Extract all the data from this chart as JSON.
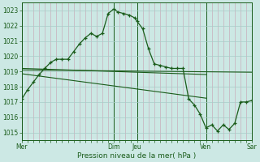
{
  "background_color": "#cce8e4",
  "plot_bg_color": "#cce8e4",
  "grid_color_major": "#a8ccc8",
  "grid_color_minor": "#c8a0b0",
  "line_color": "#1a5c1a",
  "title": "",
  "xlabel": "Pression niveau de la mer( hPa )",
  "ylim": [
    1014.5,
    1023.5
  ],
  "yticks": [
    1015,
    1016,
    1017,
    1018,
    1019,
    1020,
    1021,
    1022,
    1023
  ],
  "xlim": [
    0,
    240
  ],
  "day_positions": [
    0,
    96,
    120,
    192,
    240
  ],
  "day_labels": [
    "Mer",
    "Dim",
    "Jeu",
    "Ven",
    "Sar"
  ],
  "main_x": [
    0,
    6,
    12,
    18,
    24,
    30,
    36,
    42,
    48,
    54,
    60,
    66,
    72,
    78,
    84,
    90,
    96,
    100,
    106,
    112,
    118,
    120,
    126,
    132,
    138,
    144,
    150,
    156,
    162,
    168,
    174,
    180,
    186,
    192,
    198,
    204,
    210,
    216,
    222,
    228,
    234,
    240
  ],
  "main_y": [
    1017.2,
    1017.8,
    1018.3,
    1018.8,
    1019.2,
    1019.6,
    1019.8,
    1019.8,
    1019.8,
    1020.3,
    1020.8,
    1021.2,
    1021.5,
    1021.3,
    1021.5,
    1022.8,
    1023.1,
    1022.9,
    1022.8,
    1022.7,
    1022.5,
    1022.3,
    1021.8,
    1020.5,
    1019.5,
    1019.4,
    1019.3,
    1019.2,
    1019.2,
    1019.2,
    1017.2,
    1016.8,
    1016.2,
    1015.3,
    1015.5,
    1015.1,
    1015.5,
    1015.2,
    1015.6,
    1017.0,
    1017.0,
    1017.1
  ],
  "trend1_x": [
    0,
    240
  ],
  "trend1_y": [
    1019.1,
    1018.95
  ],
  "trend2_x": [
    0,
    192
  ],
  "trend2_y": [
    1019.2,
    1018.8
  ],
  "trend3_x": [
    0,
    192
  ],
  "trend3_y": [
    1018.85,
    1017.25
  ],
  "figsize": [
    3.2,
    2.0
  ],
  "dpi": 100
}
